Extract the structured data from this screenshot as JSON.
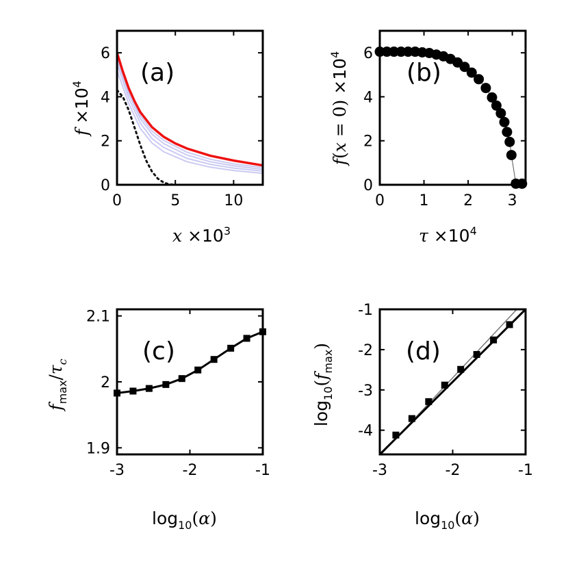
{
  "chart_data": [
    {
      "id": "a",
      "type": "line",
      "label": "(a)",
      "xlabel": "x ×10^3",
      "ylabel": "f ×10^4",
      "xlim": [
        0,
        12.5
      ],
      "ylim": [
        0,
        7
      ],
      "xticks": [
        0,
        5,
        10
      ],
      "yticks": [
        0,
        2,
        4,
        6
      ],
      "xtick_labels": [
        "0",
        "5",
        "10"
      ],
      "ytick_labels": [
        "0",
        "2",
        "4",
        "6"
      ],
      "colors": {
        "highlight": "#ee1111",
        "family": "#b4b4ee",
        "dotted": "#111111"
      },
      "series": [
        {
          "name": "faint-1",
          "style": "family",
          "x": [
            0,
            1,
            2,
            3,
            4,
            6,
            8,
            10,
            12.5
          ],
          "y": [
            5.2,
            3.7,
            2.55,
            1.9,
            1.5,
            1.05,
            0.8,
            0.65,
            0.52
          ]
        },
        {
          "name": "faint-2",
          "style": "family",
          "x": [
            0,
            1,
            2,
            3,
            4,
            6,
            8,
            10,
            12.5
          ],
          "y": [
            5.5,
            3.95,
            2.8,
            2.1,
            1.7,
            1.2,
            0.93,
            0.76,
            0.62
          ]
        },
        {
          "name": "faint-3",
          "style": "family",
          "x": [
            0,
            1,
            2,
            3,
            4,
            6,
            8,
            10,
            12.5
          ],
          "y": [
            5.7,
            4.15,
            3.0,
            2.3,
            1.87,
            1.35,
            1.05,
            0.86,
            0.7
          ]
        },
        {
          "name": "faint-4",
          "style": "family",
          "x": [
            0,
            1,
            2,
            3,
            4,
            6,
            8,
            10,
            12.5
          ],
          "y": [
            5.85,
            4.3,
            3.15,
            2.45,
            2.02,
            1.48,
            1.16,
            0.95,
            0.78
          ]
        },
        {
          "name": "highlight",
          "style": "highlight",
          "x": [
            0,
            0.5,
            1,
            1.5,
            2,
            3,
            4,
            5,
            6,
            8,
            10,
            12.5
          ],
          "y": [
            6.0,
            5.15,
            4.4,
            3.8,
            3.3,
            2.62,
            2.18,
            1.88,
            1.65,
            1.32,
            1.1,
            0.88
          ]
        },
        {
          "name": "dotted",
          "style": "dotted",
          "x": [
            0,
            0.5,
            1,
            1.5,
            2,
            2.5,
            3,
            3.5,
            4,
            4.5,
            5,
            6,
            12.5
          ],
          "y": [
            4.3,
            4.0,
            3.4,
            2.6,
            1.8,
            1.1,
            0.6,
            0.28,
            0.1,
            0.02,
            0,
            0,
            0
          ]
        }
      ]
    },
    {
      "id": "b",
      "type": "scatter",
      "label": "(b)",
      "xlabel": "τ ×10^4",
      "ylabel": "f(x=0) ×10^4",
      "xlim": [
        0,
        3.3
      ],
      "ylim": [
        0,
        7
      ],
      "xticks": [
        0,
        1,
        2,
        3
      ],
      "yticks": [
        0,
        2,
        4,
        6
      ],
      "xtick_labels": [
        "0",
        "1",
        "2",
        "3"
      ],
      "ytick_labels": [
        "0",
        "2",
        "4",
        "6"
      ],
      "colors": {
        "marker": "#000000",
        "line": "#555555"
      },
      "points": [
        {
          "x": 0.0,
          "y": 6.05
        },
        {
          "x": 0.16,
          "y": 6.05
        },
        {
          "x": 0.32,
          "y": 6.05
        },
        {
          "x": 0.48,
          "y": 6.05
        },
        {
          "x": 0.64,
          "y": 6.05
        },
        {
          "x": 0.8,
          "y": 6.05
        },
        {
          "x": 0.96,
          "y": 6.02
        },
        {
          "x": 1.12,
          "y": 5.99
        },
        {
          "x": 1.28,
          "y": 5.92
        },
        {
          "x": 1.44,
          "y": 5.84
        },
        {
          "x": 1.6,
          "y": 5.72
        },
        {
          "x": 1.76,
          "y": 5.56
        },
        {
          "x": 1.92,
          "y": 5.36
        },
        {
          "x": 2.08,
          "y": 5.1
        },
        {
          "x": 2.24,
          "y": 4.8
        },
        {
          "x": 2.4,
          "y": 4.4
        },
        {
          "x": 2.54,
          "y": 3.97
        },
        {
          "x": 2.64,
          "y": 3.6
        },
        {
          "x": 2.74,
          "y": 3.25
        },
        {
          "x": 2.82,
          "y": 2.85
        },
        {
          "x": 2.88,
          "y": 2.4
        },
        {
          "x": 2.94,
          "y": 1.95
        },
        {
          "x": 2.98,
          "y": 1.35
        },
        {
          "x": 3.08,
          "y": 0.05
        },
        {
          "x": 3.22,
          "y": 0.05
        }
      ]
    },
    {
      "id": "c",
      "type": "line",
      "label": "(c)",
      "xlabel": "log10(α)",
      "ylabel": "f_max/τ_c",
      "xlim": [
        -3,
        -1
      ],
      "ylim": [
        1.89,
        2.11
      ],
      "xticks": [
        -3,
        -2,
        -1
      ],
      "yticks": [
        1.9,
        2.0,
        2.1
      ],
      "xtick_labels": [
        "-3",
        "-2",
        "-1"
      ],
      "ytick_labels": [
        "1.9",
        "2",
        "2.1"
      ],
      "colors": {
        "line": "#000000"
      },
      "points": [
        {
          "x": -3.0,
          "y": 1.983
        },
        {
          "x": -2.78,
          "y": 1.986
        },
        {
          "x": -2.56,
          "y": 1.99
        },
        {
          "x": -2.33,
          "y": 1.996
        },
        {
          "x": -2.11,
          "y": 2.005
        },
        {
          "x": -1.89,
          "y": 2.018
        },
        {
          "x": -1.67,
          "y": 2.034
        },
        {
          "x": -1.44,
          "y": 2.051
        },
        {
          "x": -1.22,
          "y": 2.066
        },
        {
          "x": -1.0,
          "y": 2.076
        }
      ]
    },
    {
      "id": "d",
      "type": "line",
      "label": "(d)",
      "xlabel": "log10(α)",
      "ylabel": "log10(f_max)",
      "xlim": [
        -3,
        -1
      ],
      "ylim": [
        -4.6,
        -1
      ],
      "xticks": [
        -3,
        -2,
        -1
      ],
      "yticks": [
        -4,
        -3,
        -2,
        -1
      ],
      "xtick_labels": [
        "-3",
        "-2",
        "-1"
      ],
      "ytick_labels": [
        "-4",
        "-3",
        "-2",
        "-1"
      ],
      "colors": {
        "line": "#000000",
        "reference": "#777777"
      },
      "reference": {
        "x": [
          -3.0,
          -1.12
        ],
        "y": [
          -4.63,
          -1.0
        ]
      },
      "fit": {
        "x": [
          -3.0,
          -1.0
        ],
        "y": [
          -4.6,
          -1.0
        ]
      },
      "points": [
        {
          "x": -2.78,
          "y": -4.12
        },
        {
          "x": -2.56,
          "y": -3.71
        },
        {
          "x": -2.33,
          "y": -3.29
        },
        {
          "x": -2.11,
          "y": -2.88
        },
        {
          "x": -1.89,
          "y": -2.49
        },
        {
          "x": -1.67,
          "y": -2.12
        },
        {
          "x": -1.44,
          "y": -1.76
        },
        {
          "x": -1.22,
          "y": -1.38
        }
      ]
    }
  ]
}
